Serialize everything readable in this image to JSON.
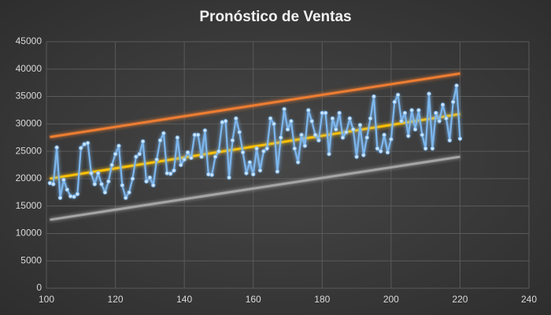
{
  "chart_data": {
    "type": "line",
    "title": "Pronóstico de Ventas",
    "xlim": [
      100,
      240
    ],
    "xticks": [
      100,
      120,
      140,
      160,
      180,
      200,
      220,
      240
    ],
    "ylim": [
      0,
      45000
    ],
    "yticks": [
      0,
      5000,
      10000,
      15000,
      20000,
      25000,
      30000,
      35000,
      40000,
      45000
    ],
    "grid": true,
    "series": [
      {
        "color": "#7db7ee",
        "markers": true,
        "x": [
          101,
          102,
          103,
          104,
          105,
          106,
          107,
          108,
          109,
          110,
          111,
          112,
          113,
          114,
          115,
          116,
          117,
          118,
          119,
          120,
          121,
          122,
          123,
          124,
          125,
          126,
          127,
          128,
          129,
          130,
          131,
          132,
          133,
          134,
          135,
          136,
          137,
          138,
          139,
          140,
          141,
          142,
          143,
          144,
          145,
          146,
          147,
          148,
          149,
          150,
          151,
          152,
          153,
          154,
          155,
          156,
          157,
          158,
          159,
          160,
          161,
          162,
          163,
          164,
          165,
          166,
          167,
          168,
          169,
          170,
          171,
          172,
          173,
          174,
          175,
          176,
          177,
          178,
          179,
          180,
          181,
          182,
          183,
          184,
          185,
          186,
          187,
          188,
          189,
          190,
          191,
          192,
          193,
          194,
          195,
          196,
          197,
          198,
          199,
          200,
          201,
          202,
          203,
          204,
          205,
          206,
          207,
          208,
          209,
          210,
          211,
          212,
          213,
          214,
          215,
          216,
          217,
          218,
          219,
          220
        ],
        "values": [
          19200,
          19000,
          25700,
          16500,
          19800,
          18000,
          16800,
          16700,
          17200,
          25600,
          26300,
          26500,
          21000,
          19000,
          21000,
          19000,
          17500,
          19500,
          22500,
          24500,
          26000,
          18800,
          16500,
          17500,
          20000,
          24000,
          24500,
          26800,
          19500,
          20200,
          18800,
          23500,
          27000,
          28300,
          21000,
          20900,
          21500,
          27500,
          22500,
          23500,
          24800,
          23800,
          28000,
          28000,
          24000,
          28800,
          20800,
          20700,
          24000,
          25000,
          30300,
          30500,
          20200,
          27000,
          31000,
          28500,
          24800,
          21000,
          23000,
          20800,
          25500,
          21500,
          25000,
          25500,
          31000,
          30000,
          21300,
          27500,
          32700,
          29000,
          30500,
          25500,
          23000,
          28000,
          26000,
          32500,
          30500,
          28000,
          27000,
          32000,
          32000,
          24500,
          31000,
          29000,
          32000,
          27500,
          28500,
          31000,
          29000,
          24000,
          29800,
          24300,
          27500,
          31000,
          35000,
          25500,
          25000,
          28000,
          24800,
          27200,
          34000,
          35300,
          30500,
          32000,
          27800,
          32500,
          29000,
          32500,
          28000,
          25500,
          35500,
          25500,
          32000,
          30500,
          33500,
          31000,
          27000,
          34000,
          37000,
          27300
        ]
      },
      {
        "color": "#ed7d31",
        "markers": false,
        "x": [
          101,
          220
        ],
        "values": [
          27600,
          39200
        ]
      },
      {
        "color": "#ffc000",
        "markers": false,
        "x": [
          101,
          220
        ],
        "values": [
          20000,
          31800
        ]
      },
      {
        "color": "#a5a5a5",
        "markers": false,
        "x": [
          101,
          220
        ],
        "values": [
          12500,
          24000
        ]
      }
    ]
  }
}
